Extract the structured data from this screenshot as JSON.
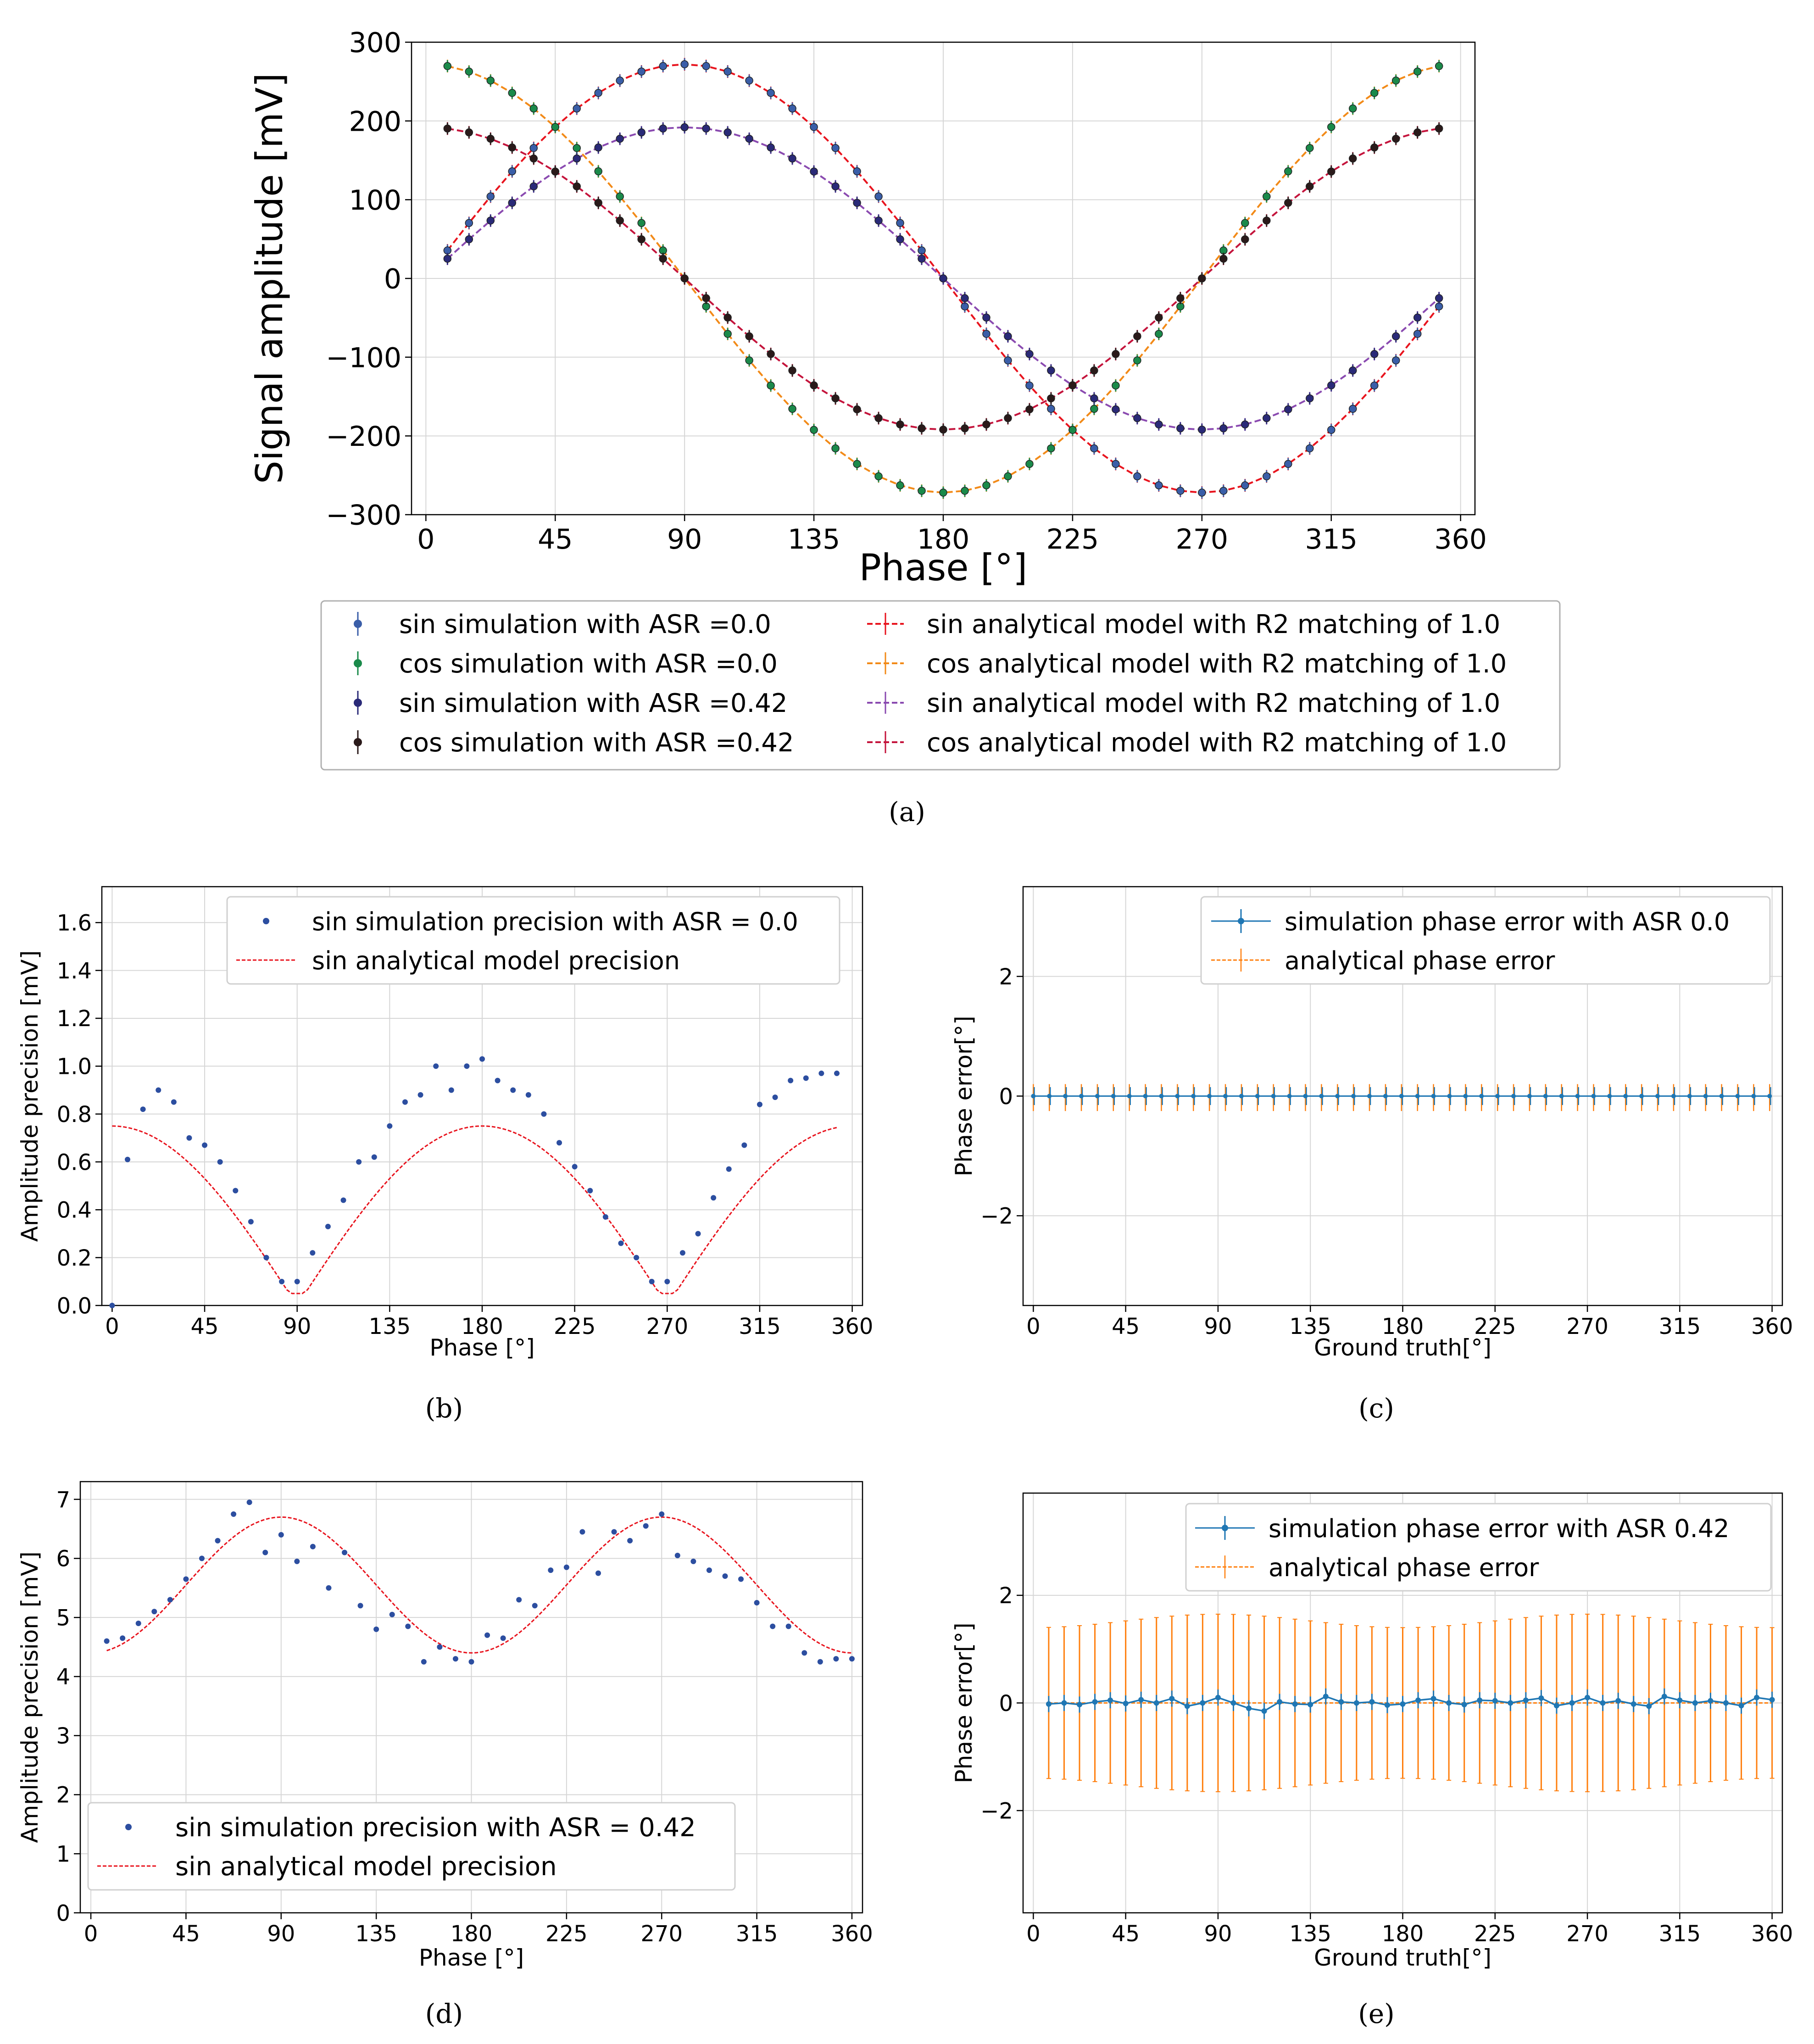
{
  "colors": {
    "sin_sim_0": "#3a5ea8",
    "cos_sim_0": "#1a8a4a",
    "sin_sim_42": "#2a2a78",
    "cos_sim_42": "#2a1a1a",
    "sin_model_0": "#e8141e",
    "cos_model_0": "#f28a18",
    "sin_model_42": "#8a4ab0",
    "cos_model_42": "#c4143c",
    "precision_dots": "#2c4ea0",
    "precision_model": "#e8141e",
    "phase_sim": "#1f77b4",
    "phase_model": "#ff7f0e",
    "grid": "#d6d6d6"
  },
  "captions": {
    "a": "(a)",
    "b": "(b)",
    "c": "(c)",
    "d": "(d)",
    "e": "(e)"
  },
  "chart_data": [
    {
      "id": "a",
      "type": "line",
      "title": "",
      "xlabel": "Phase [°]",
      "ylabel": "Signal amplitude [mV]",
      "xlim": [
        -5,
        365
      ],
      "ylim": [
        -300,
        300
      ],
      "xticks": [
        "0",
        "45",
        "90",
        "135",
        "180",
        "225",
        "270",
        "315",
        "360"
      ],
      "yticks": [
        "−300",
        "−200",
        "−100",
        "0",
        "100",
        "200",
        "300"
      ],
      "grid": true,
      "legend_position": "below",
      "x": {
        "start": 7.5,
        "step": 7.5,
        "count": 47
      },
      "series": [
        {
          "name": "sin simulation with ASR =0.0",
          "style": "points",
          "amplitude": 272,
          "phase_offset": 0,
          "shape": "sin",
          "color_key": "sin_sim_0"
        },
        {
          "name": "cos simulation with ASR =0.0",
          "style": "points",
          "amplitude": 272,
          "phase_offset": 0,
          "shape": "cos",
          "color_key": "cos_sim_0"
        },
        {
          "name": "sin simulation with ASR =0.42",
          "style": "points",
          "amplitude": 192,
          "phase_offset": 0,
          "shape": "sin",
          "color_key": "sin_sim_42"
        },
        {
          "name": "cos simulation with ASR =0.42",
          "style": "points",
          "amplitude": 192,
          "phase_offset": 0,
          "shape": "cos",
          "color_key": "cos_sim_42"
        },
        {
          "name": "sin analytical model with R2 matching of 1.0",
          "style": "dashed",
          "amplitude": 272,
          "phase_offset": 0,
          "shape": "sin",
          "color_key": "sin_model_0"
        },
        {
          "name": "cos analytical model with R2 matching of 1.0",
          "style": "dashed",
          "amplitude": 272,
          "phase_offset": 0,
          "shape": "cos",
          "color_key": "cos_model_0"
        },
        {
          "name": "sin analytical model with R2 matching of 1.0",
          "style": "dashed",
          "amplitude": 192,
          "phase_offset": 0,
          "shape": "sin",
          "color_key": "sin_model_42"
        },
        {
          "name": "cos analytical model with R2 matching of 1.0",
          "style": "dashed",
          "amplitude": 192,
          "phase_offset": 0,
          "shape": "cos",
          "color_key": "cos_model_42"
        }
      ]
    },
    {
      "id": "b",
      "type": "scatter",
      "xlabel": "Phase [°]",
      "ylabel": "Amplitude precision [mV]",
      "xlim": [
        -5,
        365
      ],
      "ylim": [
        0,
        1.75
      ],
      "xticks": [
        "0",
        "45",
        "90",
        "135",
        "180",
        "225",
        "270",
        "315",
        "360"
      ],
      "yticks": [
        "0.0",
        "0.2",
        "0.4",
        "0.6",
        "0.8",
        "1.0",
        "1.2",
        "1.4",
        "1.6"
      ],
      "grid": true,
      "legend_position": "top-right",
      "series": [
        {
          "name": "sin simulation precision with ASR = 0.0",
          "style": "points",
          "color_key": "precision_dots",
          "x": [
            0,
            7.5,
            15,
            22.5,
            30,
            37.5,
            45,
            52.5,
            60,
            67.5,
            75,
            82.5,
            90,
            97.5,
            105,
            112.5,
            120,
            127.5,
            135,
            142.5,
            150,
            157.5,
            165,
            172.5,
            180,
            187.5,
            195,
            202.5,
            210,
            217.5,
            225,
            232.5,
            240,
            247.5,
            255,
            262.5,
            270,
            277.5,
            285,
            292.5,
            300,
            307.5,
            315,
            322.5,
            330,
            337.5,
            345,
            352.5
          ],
          "y": [
            0.0,
            0.61,
            0.82,
            0.9,
            0.85,
            0.7,
            0.67,
            0.6,
            0.48,
            0.35,
            0.2,
            0.1,
            0.1,
            0.22,
            0.33,
            0.44,
            0.6,
            0.62,
            0.75,
            0.85,
            0.88,
            1.0,
            0.9,
            1.0,
            1.03,
            0.94,
            0.9,
            0.88,
            0.8,
            0.68,
            0.58,
            0.48,
            0.37,
            0.26,
            0.2,
            0.1,
            0.1,
            0.22,
            0.3,
            0.45,
            0.57,
            0.67,
            0.84,
            0.87,
            0.94,
            0.95,
            0.97,
            0.97
          ]
        },
        {
          "name": "sin analytical model precision",
          "style": "dashed",
          "color_key": "precision_model",
          "formula": "0.75*|cos(phase)|, floored at 0.05"
        }
      ]
    },
    {
      "id": "c",
      "type": "line",
      "xlabel": "Ground truth[°]",
      "ylabel": "Phase error[°]",
      "xlim": [
        -5,
        365
      ],
      "ylim": [
        -3.5,
        3.5
      ],
      "xticks": [
        "0",
        "45",
        "90",
        "135",
        "180",
        "225",
        "270",
        "315",
        "360"
      ],
      "yticks": [
        "−2",
        "0",
        "2"
      ],
      "grid": true,
      "legend_position": "top-right",
      "series": [
        {
          "name": "simulation phase error with ASR 0.0",
          "style": "solid-errorbar",
          "color_key": "phase_sim",
          "value": 0.0,
          "error": 0.15
        },
        {
          "name": "analytical phase error",
          "style": "dashed-errorbar",
          "color_key": "phase_model",
          "value": 0.0,
          "error": 0.15
        }
      ]
    },
    {
      "id": "d",
      "type": "scatter",
      "xlabel": "Phase [°]",
      "ylabel": "Amplitude precision [mV]",
      "xlim": [
        -5,
        365
      ],
      "ylim": [
        0,
        7.3
      ],
      "xticks": [
        "0",
        "45",
        "90",
        "135",
        "180",
        "225",
        "270",
        "315",
        "360"
      ],
      "yticks": [
        "0",
        "1",
        "2",
        "3",
        "4",
        "5",
        "6",
        "7"
      ],
      "grid": true,
      "legend_position": "bottom-left",
      "series": [
        {
          "name": "sin simulation precision with ASR = 0.42",
          "style": "points",
          "color_key": "precision_dots",
          "x": [
            7.5,
            15,
            22.5,
            30,
            37.5,
            45,
            52.5,
            60,
            67.5,
            75,
            82.5,
            90,
            97.5,
            105,
            112.5,
            120,
            127.5,
            135,
            142.5,
            150,
            157.5,
            165,
            172.5,
            180,
            187.5,
            195,
            202.5,
            210,
            217.5,
            225,
            232.5,
            240,
            247.5,
            255,
            262.5,
            270,
            277.5,
            285,
            292.5,
            300,
            307.5,
            315,
            322.5,
            330,
            337.5,
            345,
            352.5,
            360
          ],
          "y": [
            4.6,
            4.65,
            4.9,
            5.1,
            5.3,
            5.65,
            6.0,
            6.3,
            6.75,
            6.95,
            6.1,
            6.4,
            5.95,
            6.2,
            5.5,
            6.1,
            5.2,
            4.8,
            5.05,
            4.85,
            4.25,
            4.5,
            4.3,
            4.25,
            4.7,
            4.65,
            5.3,
            5.2,
            5.8,
            5.85,
            6.45,
            5.75,
            6.45,
            6.3,
            6.55,
            6.75,
            6.05,
            5.95,
            5.8,
            5.7,
            5.65,
            5.25,
            4.85,
            4.85,
            4.4,
            4.25,
            4.3,
            4.3
          ]
        },
        {
          "name": "sin analytical model precision",
          "style": "dashed",
          "color_key": "precision_model",
          "formula": "4.4 + 2.3*sin^2(phase)"
        }
      ]
    },
    {
      "id": "e",
      "type": "line",
      "xlabel": "Ground truth[°]",
      "ylabel": "Phase error[°]",
      "xlim": [
        -5,
        365
      ],
      "ylim": [
        -3.9,
        3.9
      ],
      "xticks": [
        "0",
        "45",
        "90",
        "135",
        "180",
        "225",
        "270",
        "315",
        "360"
      ],
      "yticks": [
        "−2",
        "0",
        "2"
      ],
      "grid": true,
      "legend_position": "top-right",
      "series": [
        {
          "name": "simulation phase error with ASR 0.42",
          "style": "solid-errorbar",
          "color_key": "phase_sim",
          "x": [
            7.5,
            15,
            22.5,
            30,
            37.5,
            45,
            52.5,
            60,
            67.5,
            75,
            82.5,
            90,
            97.5,
            105,
            112.5,
            120,
            127.5,
            135,
            142.5,
            150,
            157.5,
            165,
            172.5,
            180,
            187.5,
            195,
            202.5,
            210,
            217.5,
            225,
            232.5,
            240,
            247.5,
            255,
            262.5,
            270,
            277.5,
            285,
            292.5,
            300,
            307.5,
            315,
            322.5,
            330,
            337.5,
            345,
            352.5,
            360
          ],
          "y": [
            -0.02,
            0.0,
            -0.03,
            0.02,
            0.05,
            -0.01,
            0.06,
            0.0,
            0.08,
            -0.06,
            0.0,
            0.1,
            0.0,
            -0.1,
            -0.15,
            0.02,
            -0.02,
            -0.03,
            0.12,
            0.02,
            0.0,
            0.02,
            -0.04,
            -0.02,
            0.05,
            0.08,
            0.0,
            -0.03,
            0.05,
            0.04,
            0.0,
            0.05,
            0.09,
            -0.05,
            0.0,
            0.1,
            0.0,
            0.04,
            -0.02,
            -0.06,
            0.12,
            0.05,
            0.0,
            0.04,
            0.0,
            -0.05,
            0.1,
            0.06
          ],
          "error": 0.15
        },
        {
          "name": "analytical phase error",
          "style": "dashed-errorbar",
          "color_key": "phase_model",
          "value": 0.0,
          "error_formula": "1.4 + 0.25*sin^2(phase)"
        }
      ]
    }
  ]
}
